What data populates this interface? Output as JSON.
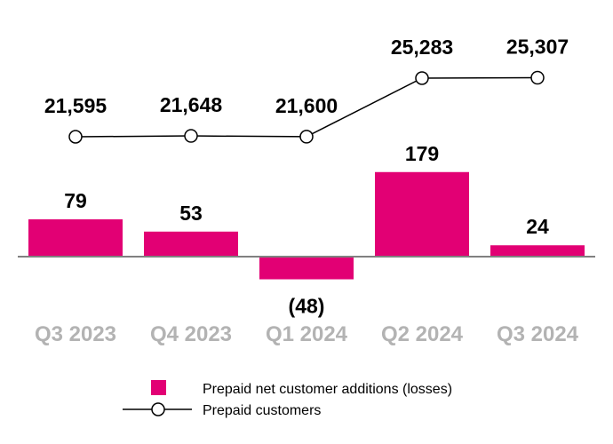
{
  "chart_data": {
    "type": "bar+line",
    "categories": [
      "Q3 2023",
      "Q4 2023",
      "Q1 2024",
      "Q2 2024",
      "Q3 2024"
    ],
    "series": [
      {
        "name": "Prepaid net customer additions (losses)",
        "type": "bar",
        "values": [
          79,
          53,
          -48,
          179,
          24
        ],
        "labels": [
          "79",
          "53",
          "(48)",
          "179",
          "24"
        ],
        "color": "#e20074"
      },
      {
        "name": "Prepaid customers",
        "type": "line",
        "values": [
          21595,
          21648,
          21600,
          25283,
          25307
        ],
        "labels": [
          "21,595",
          "21,648",
          "21,600",
          "25,283",
          "25,307"
        ],
        "color": "#000000"
      }
    ],
    "legend": "bottom",
    "grid": false,
    "category_label_color": "#b3b3b3"
  }
}
